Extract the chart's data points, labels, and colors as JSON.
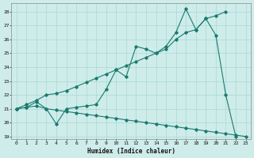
{
  "xlabel": "Humidex (Indice chaleur)",
  "background_color": "#ceecea",
  "grid_color": "#a8d8d4",
  "line_color": "#1a7a6e",
  "xlim": [
    -0.5,
    23.5
  ],
  "ylim": [
    18.8,
    28.6
  ],
  "xticks": [
    0,
    1,
    2,
    3,
    4,
    5,
    6,
    7,
    8,
    9,
    10,
    11,
    12,
    13,
    14,
    15,
    16,
    17,
    18,
    19,
    20,
    21,
    22,
    23
  ],
  "yticks": [
    19,
    20,
    21,
    22,
    23,
    24,
    25,
    26,
    27,
    28
  ],
  "series1_x": [
    0,
    1,
    2,
    3,
    4,
    5,
    6,
    7,
    8,
    9,
    10,
    11,
    12,
    13,
    14,
    15,
    16,
    17,
    18,
    19,
    20,
    21,
    22
  ],
  "series1_y": [
    21.0,
    21.1,
    21.5,
    21.0,
    19.9,
    21.0,
    21.1,
    21.2,
    21.3,
    22.4,
    23.8,
    23.3,
    25.5,
    25.3,
    25.0,
    25.5,
    26.5,
    28.2,
    26.7,
    27.5,
    26.3,
    22.0,
    19.0
  ],
  "series2_x": [
    0,
    1,
    2,
    3,
    4,
    5,
    6,
    7,
    8,
    9,
    10,
    11,
    12,
    13,
    14,
    15,
    16,
    17,
    18,
    19,
    20,
    21
  ],
  "series2_y": [
    21.0,
    21.3,
    21.6,
    22.0,
    22.1,
    22.3,
    22.6,
    22.9,
    23.2,
    23.5,
    23.8,
    24.1,
    24.4,
    24.7,
    25.0,
    25.3,
    26.0,
    26.5,
    26.7,
    27.5,
    27.7,
    28.0
  ],
  "series3_x": [
    0,
    1,
    2,
    3,
    4,
    5,
    6,
    7,
    8,
    9,
    10,
    11,
    12,
    13,
    14,
    15,
    16,
    17,
    18,
    19,
    20,
    21,
    22,
    23
  ],
  "series3_y": [
    21.0,
    21.1,
    21.2,
    21.0,
    20.9,
    20.8,
    20.7,
    20.6,
    20.5,
    20.4,
    20.3,
    20.2,
    20.1,
    20.0,
    19.9,
    19.8,
    19.7,
    19.6,
    19.5,
    19.4,
    19.3,
    19.2,
    19.1,
    19.0
  ]
}
